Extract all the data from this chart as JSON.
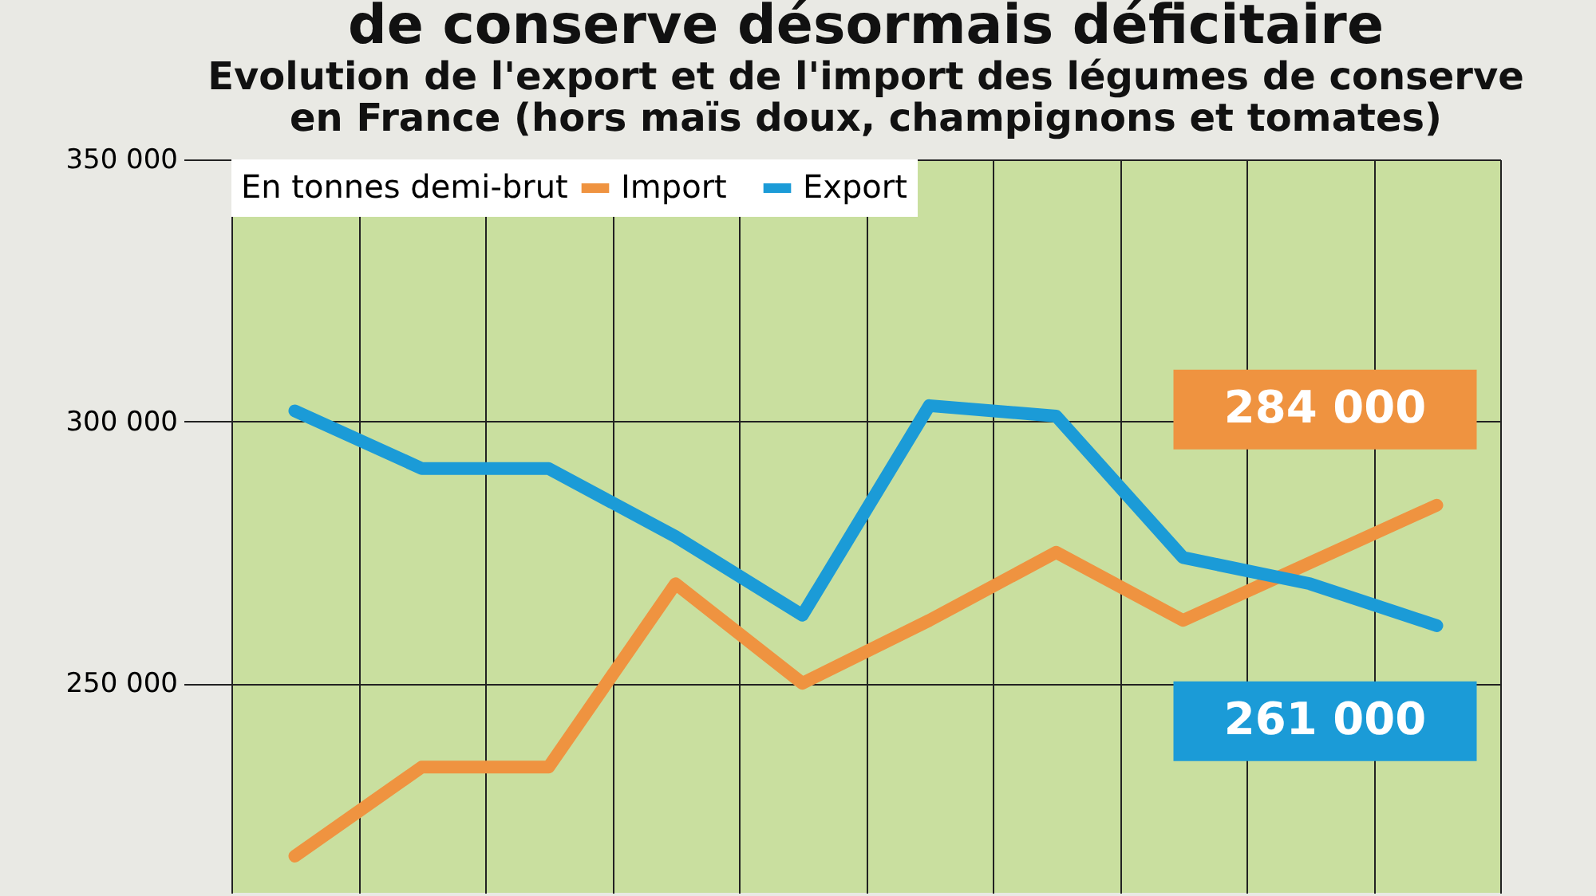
{
  "chart_data": {
    "type": "line",
    "title": "de conserve désormais déficitaire",
    "subtitle": "Evolution de l'export et de l'import des légumes de conserve\nen France (hors maïs doux, champignons et tomates)",
    "legend_title": "En tonnes demi-brut",
    "categories": [
      null,
      null,
      null,
      null,
      null,
      null,
      null,
      null,
      null,
      null
    ],
    "series": [
      {
        "name": "Import",
        "color": "#ef9340",
        "values": [
          217000,
          234000,
          234000,
          269000,
          250000,
          262000,
          275000,
          262000,
          273000,
          284000
        ],
        "value_labels": [
          null,
          null,
          null,
          null,
          null,
          null,
          null,
          null,
          null,
          "284 000"
        ]
      },
      {
        "name": "Export",
        "color": "#1b9bd7",
        "values": [
          302000,
          291000,
          291000,
          278000,
          263000,
          303000,
          301000,
          274000,
          269000,
          261000
        ],
        "value_labels": [
          null,
          null,
          null,
          null,
          null,
          null,
          null,
          null,
          null,
          "261 000"
        ]
      }
    ],
    "ylim": [
      210000,
      350000
    ],
    "yticks": [
      {
        "value": 250000,
        "label": "250 000"
      },
      {
        "value": 300000,
        "label": "300 000"
      },
      {
        "value": 350000,
        "label": "350 000"
      }
    ],
    "grid": true,
    "legend": "top left",
    "marker": "none",
    "line_style": "solid"
  }
}
